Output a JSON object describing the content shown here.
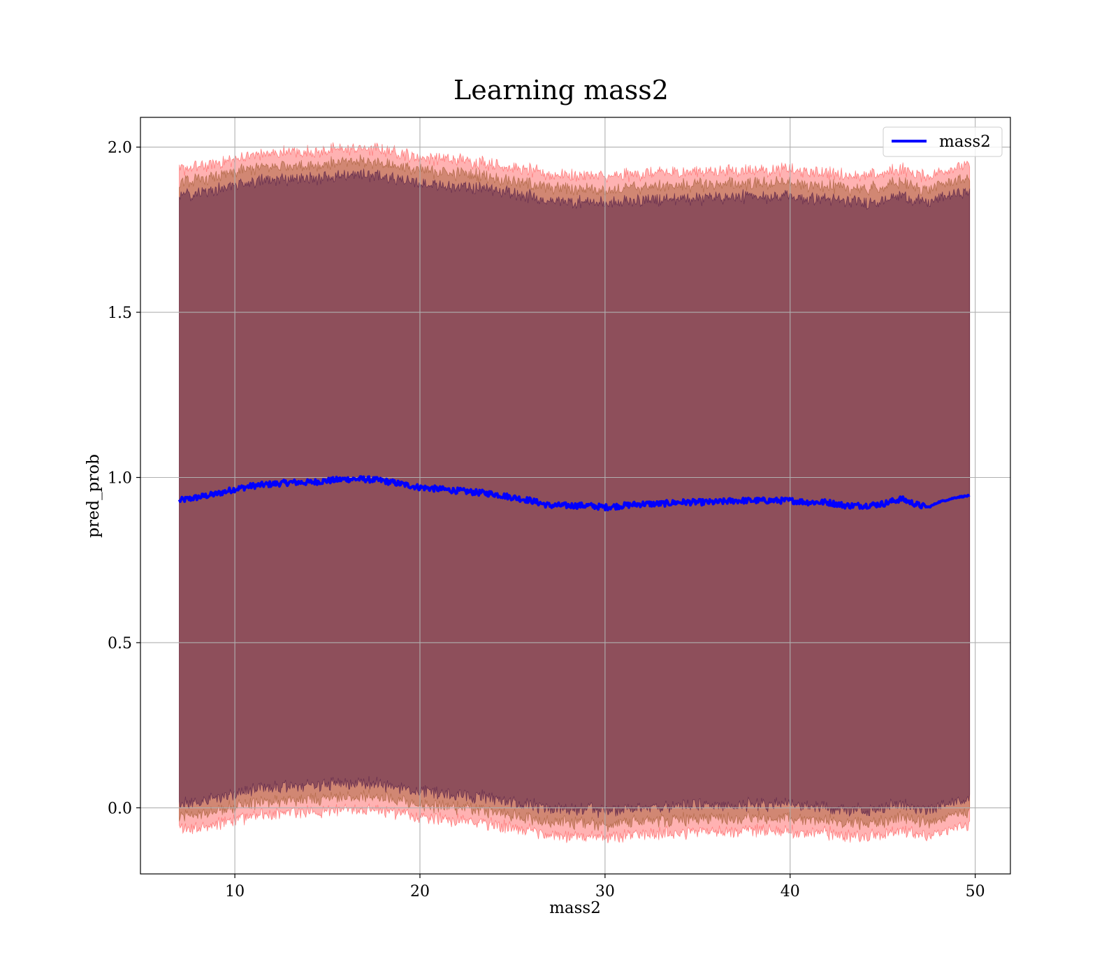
{
  "chart_data": {
    "type": "line",
    "title": "Learning mass2",
    "xlabel": "mass2",
    "ylabel": "pred_prob",
    "xlim": [
      4.9,
      51.9
    ],
    "ylim": [
      -0.2,
      2.09
    ],
    "xticks": [
      10,
      20,
      30,
      40,
      50
    ],
    "xtick_labels": [
      "10",
      "20",
      "30",
      "40",
      "50"
    ],
    "yticks": [
      0.0,
      0.5,
      1.0,
      1.5,
      2.0
    ],
    "ytick_labels": [
      "0.0",
      "0.5",
      "1.0",
      "1.5",
      "2.0"
    ],
    "grid": true,
    "legend": {
      "placement": "upper right",
      "entries": [
        "mass2"
      ]
    },
    "series": [
      {
        "name": "mass2",
        "color": "#0000ff",
        "x": [
          7.0,
          8.0,
          9.0,
          10.0,
          11.0,
          12.0,
          13.0,
          14.0,
          15.0,
          16.0,
          17.0,
          18.0,
          19.0,
          20.0,
          21.0,
          22.0,
          23.0,
          24.0,
          25.0,
          26.0,
          27.0,
          28.0,
          29.0,
          30.0,
          31.0,
          32.0,
          33.0,
          34.0,
          35.0,
          36.0,
          37.0,
          38.0,
          39.0,
          40.0,
          41.0,
          42.0,
          43.0,
          44.0,
          45.0,
          46.0,
          47.0,
          47.5,
          48.0,
          49.0,
          49.7
        ],
        "values": [
          0.93,
          0.94,
          0.95,
          0.965,
          0.975,
          0.98,
          0.985,
          0.985,
          0.99,
          0.995,
          0.995,
          0.99,
          0.98,
          0.97,
          0.965,
          0.96,
          0.955,
          0.95,
          0.94,
          0.93,
          0.915,
          0.915,
          0.915,
          0.91,
          0.915,
          0.92,
          0.92,
          0.925,
          0.925,
          0.925,
          0.93,
          0.93,
          0.93,
          0.93,
          0.925,
          0.925,
          0.915,
          0.915,
          0.92,
          0.935,
          0.915,
          0.91,
          0.925,
          0.94,
          0.945
        ]
      }
    ],
    "bands": [
      {
        "label": "outer band",
        "color": "#ff0000",
        "opacity": 0.3,
        "half_width": 1.0
      },
      {
        "label": "middle band",
        "color": "#8b4513",
        "opacity": 0.4,
        "half_width": 0.96
      },
      {
        "label": "inner band",
        "color": "#3b0a3f",
        "opacity": 0.45,
        "half_width": 0.92
      }
    ]
  }
}
